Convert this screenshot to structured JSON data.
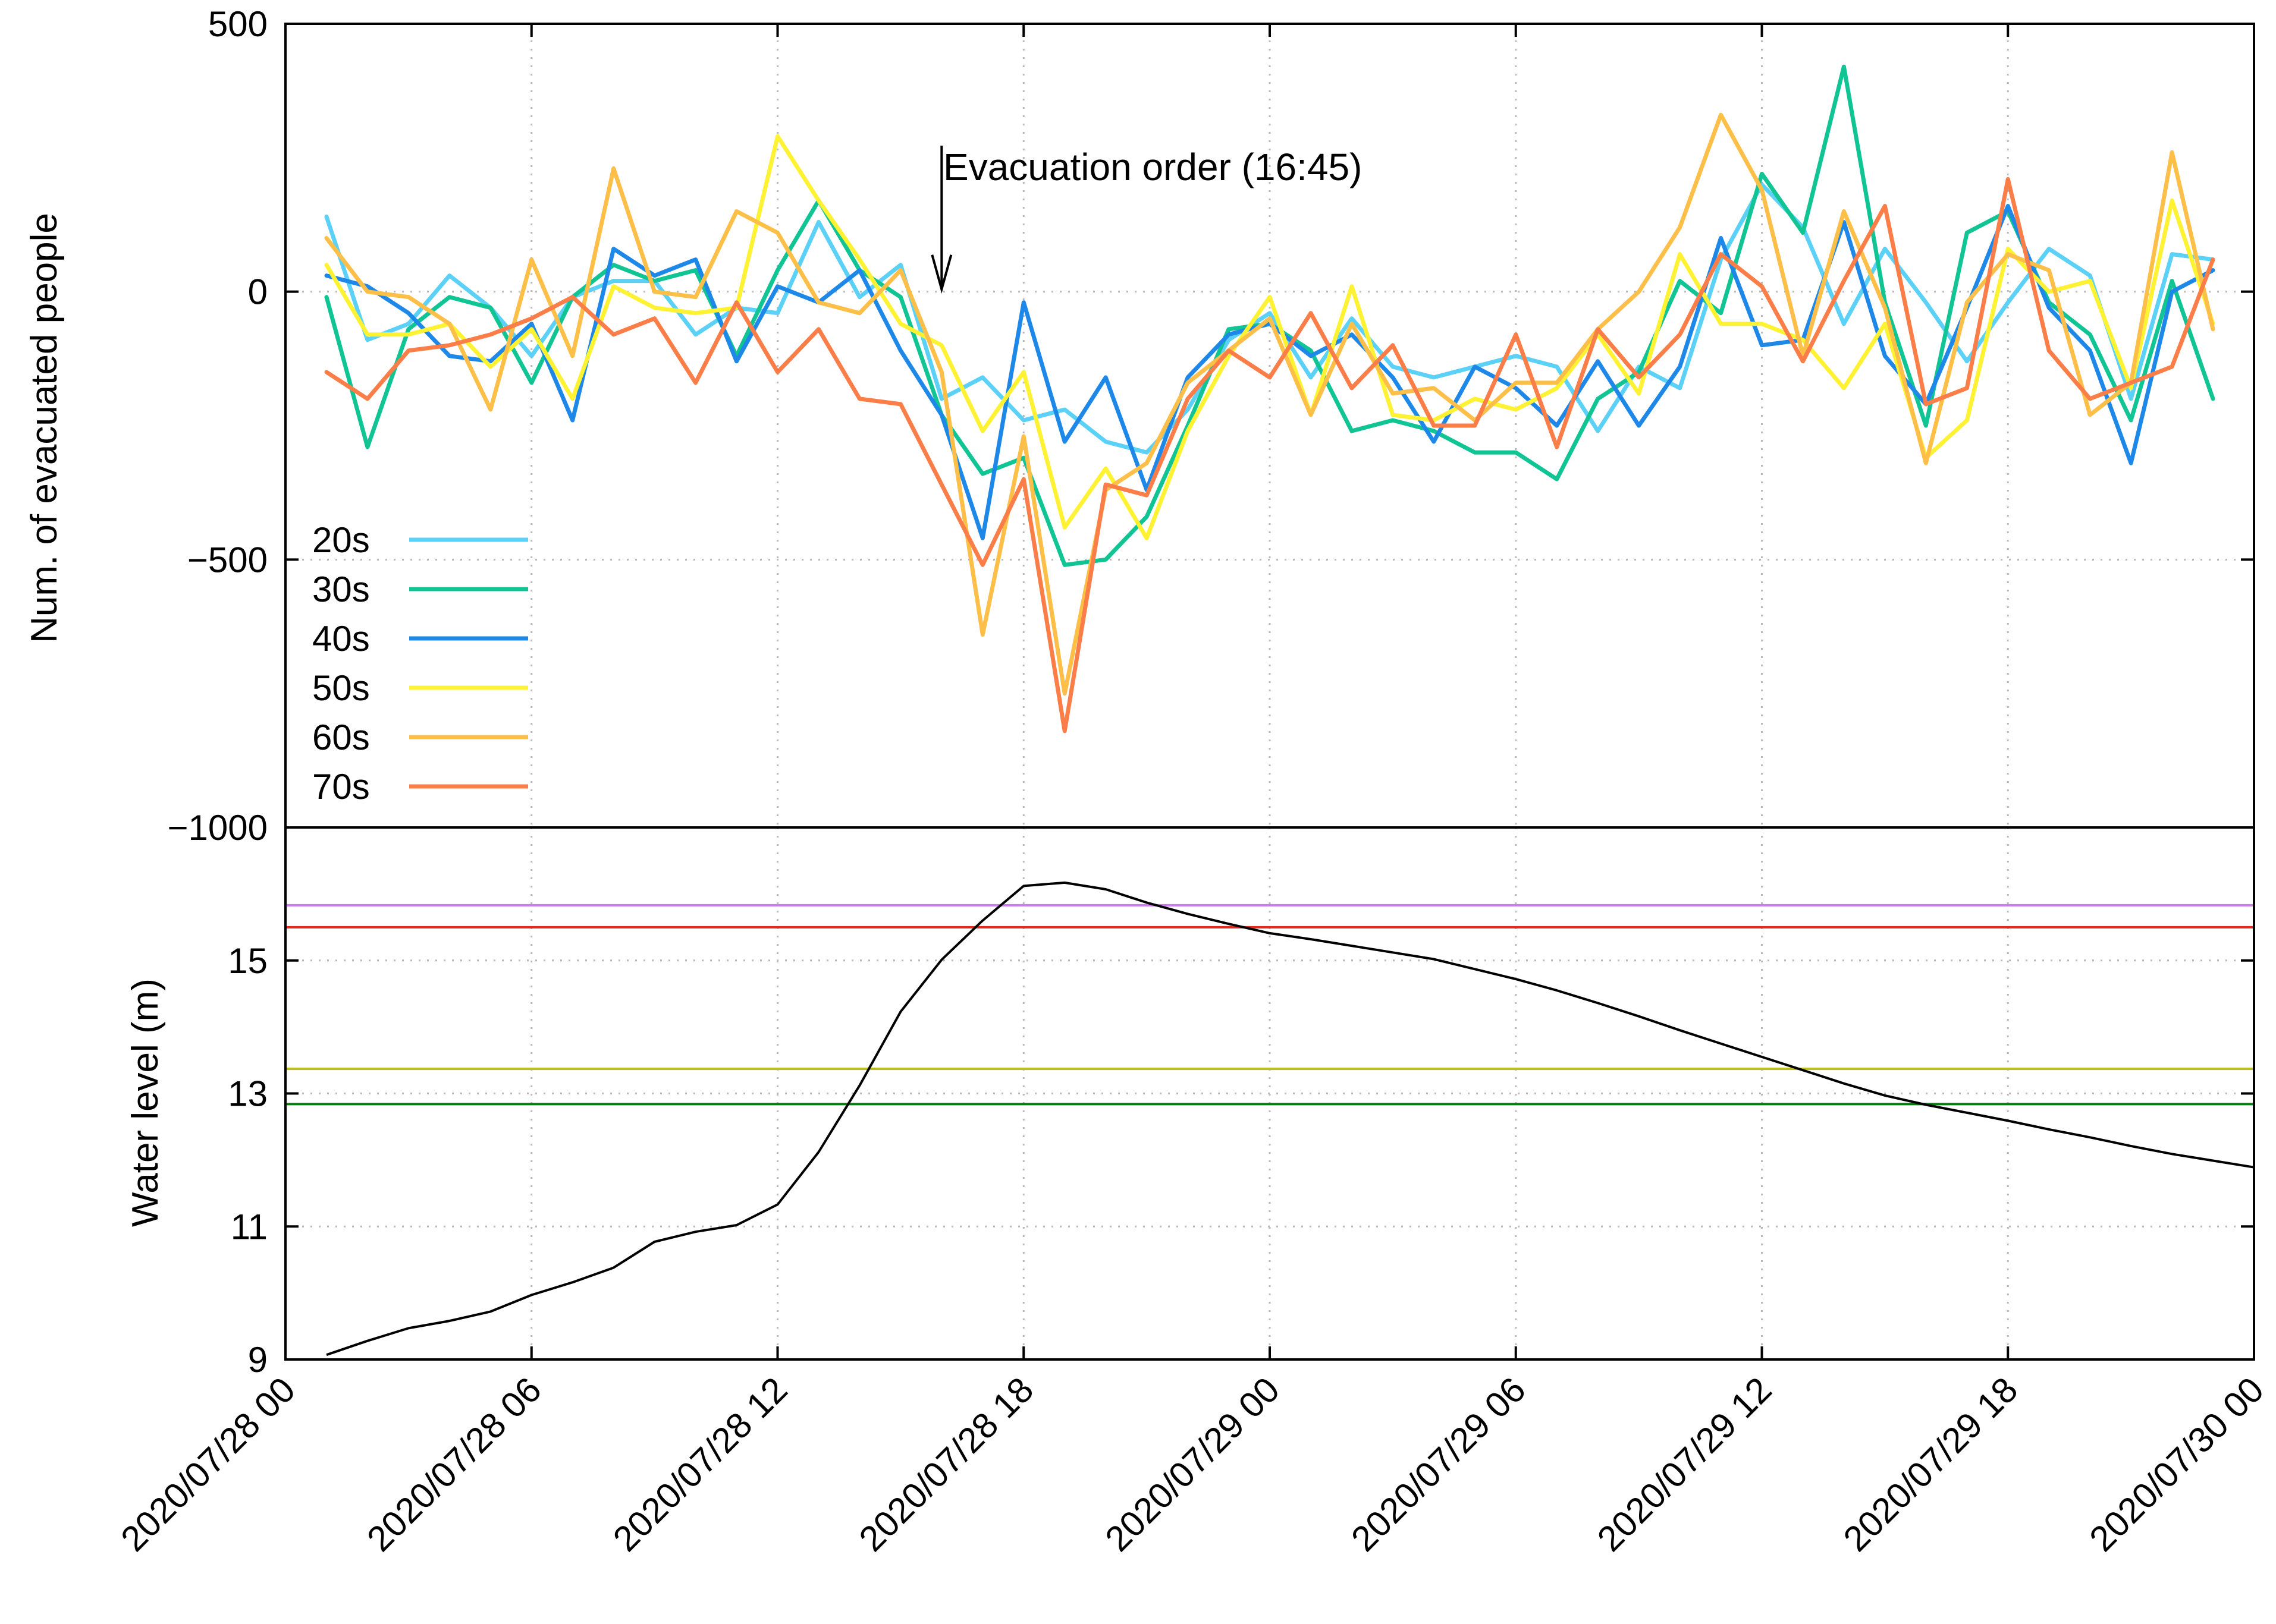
{
  "chart_data": [
    {
      "type": "line",
      "title": "",
      "xlabel": "",
      "ylabel": "Num. of evacuated people",
      "ylim": [
        -1000,
        500
      ],
      "yticks": [
        -1000,
        -500,
        0,
        500
      ],
      "ytick_labels": [
        "−1000",
        "−500",
        "0",
        "500"
      ],
      "xlim_hours": [
        0,
        48
      ],
      "x_hours": [
        1,
        2,
        3,
        4,
        5,
        6,
        7,
        8,
        9,
        10,
        11,
        12,
        13,
        14,
        15,
        16,
        17,
        18,
        19,
        20,
        21,
        22,
        23,
        24,
        25,
        26,
        27,
        28,
        29,
        30,
        31,
        32,
        33,
        34,
        35,
        36,
        37,
        38,
        39,
        40,
        41,
        42,
        43,
        44,
        45,
        46,
        47
      ],
      "grid": true,
      "legend_position": "bottom-left",
      "annotation": {
        "text": "Evacuation order (16:45)",
        "x_hours": 16,
        "y": 0
      },
      "series": [
        {
          "name": "20s",
          "color": "#5bd1f8",
          "values": [
            140,
            -90,
            -60,
            30,
            -30,
            -120,
            -10,
            20,
            20,
            -80,
            -30,
            -40,
            130,
            -10,
            50,
            -200,
            -160,
            -240,
            -220,
            -280,
            -300,
            -220,
            -90,
            -40,
            -160,
            -50,
            -140,
            -160,
            -140,
            -120,
            -140,
            -260,
            -140,
            -180,
            60,
            200,
            120,
            -60,
            80,
            -20,
            -130,
            -20,
            80,
            30,
            -200,
            70,
            60
          ]
        },
        {
          "name": "30s",
          "color": "#10c493",
          "values": [
            -10,
            -290,
            -70,
            -10,
            -30,
            -170,
            -10,
            50,
            20,
            40,
            -120,
            40,
            170,
            40,
            -10,
            -230,
            -340,
            -310,
            -510,
            -500,
            -420,
            -250,
            -70,
            -60,
            -110,
            -260,
            -240,
            -260,
            -300,
            -300,
            -350,
            -200,
            -150,
            20,
            -40,
            220,
            110,
            420,
            -20,
            -250,
            110,
            150,
            -20,
            -80,
            -240,
            20,
            -200
          ]
        },
        {
          "name": "40s",
          "color": "#1e88e9",
          "values": [
            30,
            10,
            -40,
            -120,
            -130,
            -60,
            -240,
            80,
            30,
            60,
            -130,
            10,
            -20,
            40,
            -110,
            -230,
            -460,
            -20,
            -280,
            -160,
            -370,
            -160,
            -80,
            -60,
            -120,
            -80,
            -160,
            -280,
            -140,
            -180,
            -250,
            -130,
            -250,
            -140,
            100,
            -100,
            -90,
            130,
            -120,
            -210,
            -30,
            160,
            -30,
            -110,
            -320,
            0,
            40
          ]
        },
        {
          "name": "50s",
          "color": "#fef233",
          "values": [
            50,
            -80,
            -80,
            -60,
            -140,
            -70,
            -200,
            10,
            -30,
            -40,
            -30,
            290,
            170,
            60,
            -60,
            -100,
            -260,
            -150,
            -440,
            -330,
            -460,
            -260,
            -120,
            -10,
            -230,
            10,
            -230,
            -240,
            -200,
            -220,
            -180,
            -80,
            -190,
            70,
            -60,
            -60,
            -90,
            -180,
            -60,
            -310,
            -240,
            80,
            0,
            20,
            -180,
            170,
            -60
          ]
        },
        {
          "name": "60s",
          "color": "#fdbf47",
          "values": [
            100,
            0,
            -10,
            -60,
            -220,
            60,
            -120,
            230,
            0,
            -10,
            150,
            110,
            -20,
            -40,
            40,
            -150,
            -640,
            -270,
            -750,
            -370,
            -320,
            -170,
            -110,
            -50,
            -230,
            -60,
            -190,
            -180,
            -240,
            -170,
            -170,
            -70,
            0,
            120,
            330,
            190,
            -120,
            150,
            -30,
            -320,
            -20,
            70,
            40,
            -230,
            -170,
            260,
            -70
          ]
        },
        {
          "name": "70s",
          "color": "#fb7d48",
          "values": [
            -150,
            -200,
            -110,
            -100,
            -80,
            -50,
            -10,
            -80,
            -50,
            -170,
            -20,
            -150,
            -70,
            -200,
            -210,
            -360,
            -510,
            -350,
            -820,
            -360,
            -380,
            -200,
            -110,
            -160,
            -40,
            -180,
            -100,
            -250,
            -250,
            -80,
            -290,
            -70,
            -160,
            -80,
            70,
            10,
            -130,
            20,
            160,
            -210,
            -180,
            210,
            -110,
            -200,
            -170,
            -140,
            60
          ]
        }
      ]
    },
    {
      "type": "line",
      "title": "",
      "xlabel": "",
      "ylabel": "Water level (m)",
      "ylim": [
        9,
        17
      ],
      "yticks": [
        9,
        11,
        13,
        15
      ],
      "ytick_labels": [
        "9",
        "11",
        "13",
        "15"
      ],
      "xlim_hours": [
        0,
        48
      ],
      "x_hours": [
        1,
        2,
        3,
        4,
        5,
        6,
        7,
        8,
        9,
        10,
        11,
        12,
        13,
        14,
        15,
        16,
        17,
        18,
        19,
        20,
        21,
        22,
        23,
        24,
        25,
        26,
        27,
        28,
        29,
        30,
        31,
        32,
        33,
        34,
        35,
        36,
        37,
        38,
        39,
        40,
        41,
        42,
        43,
        44,
        45,
        46,
        47,
        48
      ],
      "grid": true,
      "series": [
        {
          "name": "water level",
          "color": "#000000",
          "values": [
            9.07,
            9.28,
            9.47,
            9.58,
            9.72,
            9.97,
            10.16,
            10.38,
            10.77,
            10.92,
            11.02,
            11.33,
            12.12,
            13.12,
            14.23,
            15.01,
            15.6,
            16.12,
            16.17,
            16.07,
            15.87,
            15.7,
            15.55,
            15.41,
            15.32,
            15.22,
            15.12,
            15.02,
            14.87,
            14.72,
            14.55,
            14.36,
            14.16,
            13.95,
            13.75,
            13.55,
            13.35,
            13.15,
            12.97,
            12.83,
            12.71,
            12.59,
            12.46,
            12.34,
            12.21,
            12.09,
            11.99,
            11.89
          ]
        }
      ],
      "reference_levels": [
        {
          "value": 15.83,
          "color": "#cd7bf3"
        },
        {
          "value": 15.5,
          "color": "#e22a20"
        },
        {
          "value": 13.37,
          "color": "#bcbc1c"
        },
        {
          "value": 12.84,
          "color": "#0a7b10"
        }
      ]
    }
  ],
  "x_axis": {
    "tick_hours": [
      0,
      6,
      12,
      18,
      24,
      30,
      36,
      42,
      48
    ],
    "tick_labels": [
      "2020/07/28 00",
      "2020/07/28 06",
      "2020/07/28 12",
      "2020/07/28 18",
      "2020/07/29 00",
      "2020/07/29 06",
      "2020/07/29 12",
      "2020/07/29 18",
      "2020/07/30 00"
    ]
  }
}
